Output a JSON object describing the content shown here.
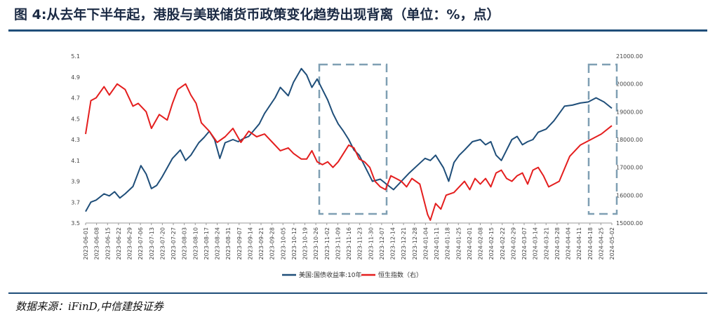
{
  "header": {
    "title": "图 4:从去年下半年起，港股与美联储货币政策变化趋势出现背离（单位：%，点）"
  },
  "footer": {
    "source": "数据来源：iFinD,中信建投证券"
  },
  "colors": {
    "rule": "#1f4e79",
    "series_left": "#1f4e79",
    "series_right": "#e41e1e",
    "box": "#7f9fb3"
  },
  "chart_data": {
    "type": "line",
    "title": "",
    "xlabel": "",
    "ylabel": "",
    "y_left": {
      "ylim": [
        3.5,
        5.1
      ],
      "ticks": [
        "3.5",
        "3.7",
        "3.9",
        "4.1",
        "4.3",
        "4.5",
        "4.7",
        "4.9",
        "5.1"
      ]
    },
    "y_right": {
      "ylim": [
        15000,
        21000
      ],
      "ticks": [
        "15000.00",
        "16000.00",
        "17000.00",
        "18000.00",
        "19000.00",
        "20000.00",
        "21000.00"
      ]
    },
    "x_ticks": [
      "2023-06-01",
      "2023-06-08",
      "2023-06-15",
      "2023-06-22",
      "2023-06-29",
      "2023-07-06",
      "2023-07-13",
      "2023-07-20",
      "2023-07-27",
      "2023-08-03",
      "2023-08-10",
      "2023-08-17",
      "2023-08-24",
      "2023-08-31",
      "2023-09-07",
      "2023-09-14",
      "2023-09-21",
      "2023-09-28",
      "2023-10-05",
      "2023-10-12",
      "2023-10-19",
      "2023-10-26",
      "2023-11-02",
      "2023-11-09",
      "2023-11-16",
      "2023-11-23",
      "2023-11-30",
      "2023-12-07",
      "2023-12-14",
      "2023-12-21",
      "2023-12-28",
      "2024-01-04",
      "2024-01-11",
      "2024-01-18",
      "2024-01-25",
      "2024-02-01",
      "2024-02-08",
      "2024-02-15",
      "2024-02-22",
      "2024-02-29",
      "2024-03-07",
      "2024-03-14",
      "2024-03-21",
      "2024-03-28",
      "2024-04-04",
      "2024-04-11",
      "2024-04-18",
      "2024-04-25",
      "2024-05-02"
    ],
    "legend_position": "bottom-center",
    "grid": false,
    "series": [
      {
        "name": "美国:国债收益率:10年",
        "axis": "left",
        "values": [
          3.61,
          3.7,
          3.72,
          3.78,
          3.76,
          3.8,
          3.74,
          3.78,
          3.85,
          4.05,
          3.97,
          3.83,
          3.86,
          3.94,
          4.03,
          4.12,
          4.2,
          4.1,
          4.15,
          4.27,
          4.32,
          4.38,
          4.3,
          4.12,
          4.27,
          4.3,
          4.28,
          4.31,
          4.33,
          4.39,
          4.45,
          4.55,
          4.7,
          4.8,
          4.72,
          4.85,
          4.98,
          4.92,
          4.8,
          4.88,
          4.68,
          4.55,
          4.45,
          4.38,
          4.3,
          4.2,
          4.15,
          4.05,
          3.9,
          3.92,
          3.88,
          3.82,
          3.9,
          3.98,
          4.05,
          4.12,
          4.1,
          4.15,
          4.03,
          3.9,
          4.08,
          4.15,
          4.2,
          4.28,
          4.3,
          4.25,
          4.28,
          4.15,
          4.1,
          4.2,
          4.3,
          4.33,
          4.25,
          4.28,
          4.3,
          4.37,
          4.4,
          4.48,
          4.55,
          4.62,
          4.63,
          4.65,
          4.66,
          4.7,
          4.66,
          4.6
        ],
        "x_pos": [
          0,
          0.01,
          0.02,
          0.035,
          0.045,
          0.055,
          0.065,
          0.075,
          0.09,
          0.105,
          0.115,
          0.125,
          0.135,
          0.145,
          0.155,
          0.165,
          0.18,
          0.19,
          0.2,
          0.215,
          0.225,
          0.235,
          0.245,
          0.255,
          0.265,
          0.28,
          0.29,
          0.3,
          0.31,
          0.32,
          0.33,
          0.34,
          0.36,
          0.37,
          0.385,
          0.395,
          0.41,
          0.42,
          0.43,
          0.44,
          0.46,
          0.47,
          0.48,
          0.49,
          0.5,
          0.51,
          0.52,
          0.53,
          0.545,
          0.56,
          0.57,
          0.585,
          0.6,
          0.615,
          0.63,
          0.645,
          0.655,
          0.665,
          0.68,
          0.69,
          0.7,
          0.71,
          0.72,
          0.735,
          0.75,
          0.76,
          0.77,
          0.78,
          0.79,
          0.8,
          0.81,
          0.82,
          0.83,
          0.84,
          0.85,
          0.86,
          0.875,
          0.89,
          0.9,
          0.91,
          0.925,
          0.94,
          0.955,
          0.97,
          0.985,
          1.0
        ]
      },
      {
        "name": "恒生指数（右）",
        "axis": "right",
        "values": [
          18200,
          19400,
          19500,
          19900,
          19600,
          20000,
          19800,
          19200,
          19300,
          19000,
          18400,
          18900,
          18700,
          19300,
          19800,
          20000,
          19600,
          19300,
          18600,
          18300,
          17900,
          18100,
          18400,
          17900,
          18300,
          18100,
          18200,
          17900,
          17600,
          17700,
          17500,
          17300,
          17300,
          17600,
          17200,
          17100,
          17200,
          17000,
          17200,
          17500,
          17800,
          17700,
          17300,
          17200,
          17000,
          16500,
          16300,
          16200,
          16700,
          16600,
          16500,
          16300,
          16600,
          16400,
          15300,
          15100,
          15700,
          15500,
          16000,
          16100,
          16300,
          16500,
          16200,
          16600,
          16400,
          16600,
          16300,
          16800,
          16900,
          16600,
          16500,
          16700,
          16800,
          16400,
          16900,
          17000,
          16700,
          16300,
          16500,
          17400,
          17800,
          18000,
          18200,
          18500
        ],
        "x_pos": [
          0,
          0.01,
          0.02,
          0.035,
          0.045,
          0.06,
          0.075,
          0.09,
          0.1,
          0.115,
          0.125,
          0.14,
          0.155,
          0.165,
          0.175,
          0.19,
          0.2,
          0.21,
          0.22,
          0.235,
          0.25,
          0.265,
          0.28,
          0.295,
          0.31,
          0.325,
          0.34,
          0.355,
          0.37,
          0.385,
          0.395,
          0.41,
          0.42,
          0.43,
          0.44,
          0.45,
          0.46,
          0.47,
          0.48,
          0.49,
          0.5,
          0.51,
          0.52,
          0.53,
          0.54,
          0.55,
          0.56,
          0.57,
          0.58,
          0.59,
          0.6,
          0.61,
          0.62,
          0.635,
          0.65,
          0.655,
          0.665,
          0.675,
          0.685,
          0.7,
          0.71,
          0.72,
          0.73,
          0.74,
          0.75,
          0.76,
          0.77,
          0.78,
          0.79,
          0.8,
          0.81,
          0.82,
          0.83,
          0.84,
          0.85,
          0.86,
          0.87,
          0.88,
          0.9,
          0.92,
          0.94,
          0.96,
          0.98,
          1.0
        ]
      }
    ]
  }
}
